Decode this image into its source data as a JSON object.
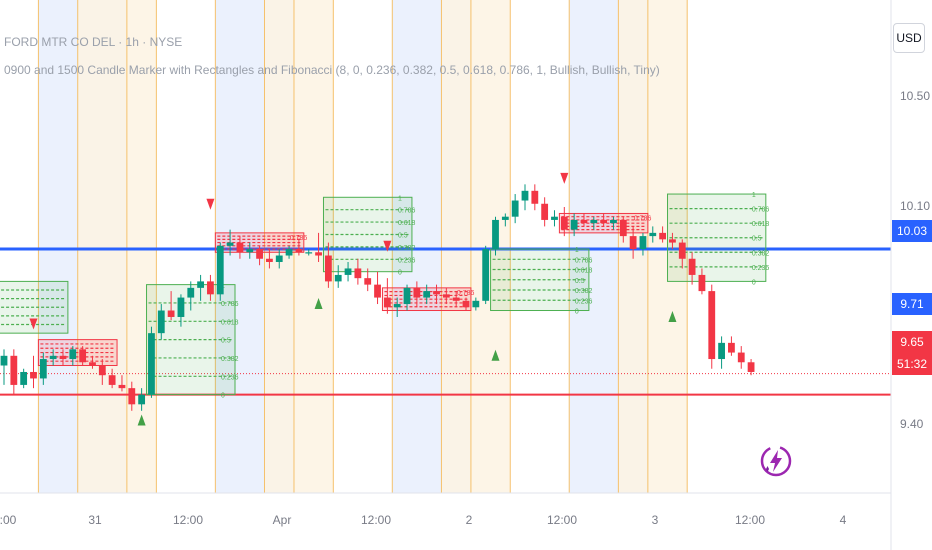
{
  "header": {
    "symbol": "FORD MTR CO DEL · 1h · NYSE",
    "indicator": "0900 and 1500 Candle Marker with Rectangles and Fibonacci (8, 0, 0.236, 0.382, 0.5, 0.618, 0.786, 1, Bullish, Bullish, Tiny)"
  },
  "price_axis": {
    "currency": "USD",
    "tick_labels": [
      "10.50",
      "10.10",
      "9.40"
    ],
    "badges": {
      "blue_line": "10.03",
      "blue": "9.71",
      "last": "9.65",
      "countdown": "51:32"
    }
  },
  "time_axis": {
    "labels": [
      ":00",
      "31",
      "12:00",
      "Apr",
      "12:00",
      "2",
      "12:00",
      "3",
      "12:00",
      "4"
    ]
  },
  "colors": {
    "up": "#089981",
    "down": "#f23645",
    "blue_line": "#2962ff",
    "session_blue": "#e8effd",
    "session_orange": "#fdf3e3",
    "fib_green": "#4caf50",
    "box_red": "#f23645"
  },
  "chart_data": {
    "type": "candlestick",
    "title": "FORD MTR CO DEL · 1h · NYSE",
    "ylim": [
      9.31,
      10.66
    ],
    "horizontal_lines": [
      {
        "price": 10.03,
        "color": "#2962ff"
      },
      {
        "price": 9.58,
        "color": "#f23645"
      },
      {
        "price": 9.645,
        "color": "#f23645",
        "style": "dotted"
      }
    ],
    "candles": [
      {
        "o": 9.67,
        "h": 9.72,
        "l": 9.61,
        "c": 9.7
      },
      {
        "o": 9.7,
        "h": 9.72,
        "l": 9.58,
        "c": 9.61
      },
      {
        "o": 9.61,
        "h": 9.66,
        "l": 9.6,
        "c": 9.65
      },
      {
        "o": 9.65,
        "h": 9.7,
        "l": 9.6,
        "c": 9.63
      },
      {
        "o": 9.63,
        "h": 9.71,
        "l": 9.61,
        "c": 9.69
      },
      {
        "o": 9.69,
        "h": 9.72,
        "l": 9.67,
        "c": 9.7
      },
      {
        "o": 9.7,
        "h": 9.72,
        "l": 9.67,
        "c": 9.69
      },
      {
        "o": 9.69,
        "h": 9.73,
        "l": 9.67,
        "c": 9.72
      },
      {
        "o": 9.72,
        "h": 9.73,
        "l": 9.67,
        "c": 9.68
      },
      {
        "o": 9.68,
        "h": 9.7,
        "l": 9.66,
        "c": 9.67
      },
      {
        "o": 9.67,
        "h": 9.69,
        "l": 9.61,
        "c": 9.64
      },
      {
        "o": 9.64,
        "h": 9.66,
        "l": 9.6,
        "c": 9.61
      },
      {
        "o": 9.61,
        "h": 9.64,
        "l": 9.59,
        "c": 9.6
      },
      {
        "o": 9.6,
        "h": 9.62,
        "l": 9.53,
        "c": 9.55
      },
      {
        "o": 9.55,
        "h": 9.6,
        "l": 9.53,
        "c": 9.58
      },
      {
        "o": 9.58,
        "h": 9.79,
        "l": 9.57,
        "c": 9.77
      },
      {
        "o": 9.77,
        "h": 9.86,
        "l": 9.75,
        "c": 9.84
      },
      {
        "o": 9.84,
        "h": 9.9,
        "l": 9.81,
        "c": 9.82
      },
      {
        "o": 9.82,
        "h": 9.89,
        "l": 9.79,
        "c": 9.88
      },
      {
        "o": 9.88,
        "h": 9.93,
        "l": 9.84,
        "c": 9.91
      },
      {
        "o": 9.91,
        "h": 9.95,
        "l": 9.87,
        "c": 9.93
      },
      {
        "o": 9.93,
        "h": 9.95,
        "l": 9.87,
        "c": 9.89
      },
      {
        "o": 9.89,
        "h": 10.05,
        "l": 9.87,
        "c": 10.04
      },
      {
        "o": 10.04,
        "h": 10.09,
        "l": 10.01,
        "c": 10.05
      },
      {
        "o": 10.05,
        "h": 10.07,
        "l": 10.0,
        "c": 10.02
      },
      {
        "o": 10.02,
        "h": 10.05,
        "l": 10.0,
        "c": 10.03
      },
      {
        "o": 10.03,
        "h": 10.04,
        "l": 9.98,
        "c": 10.0
      },
      {
        "o": 10.0,
        "h": 10.03,
        "l": 9.97,
        "c": 9.99
      },
      {
        "o": 9.99,
        "h": 10.03,
        "l": 9.97,
        "c": 10.01
      },
      {
        "o": 10.01,
        "h": 10.04,
        "l": 10.0,
        "c": 10.03
      },
      {
        "o": 10.03,
        "h": 10.06,
        "l": 10.01,
        "c": 10.02
      },
      {
        "o": 10.02,
        "h": 10.03,
        "l": 10.01,
        "c": 10.02
      },
      {
        "o": 10.02,
        "h": 10.08,
        "l": 9.99,
        "c": 10.01
      },
      {
        "o": 10.01,
        "h": 10.05,
        "l": 9.91,
        "c": 9.93
      },
      {
        "o": 9.93,
        "h": 9.98,
        "l": 9.91,
        "c": 9.95
      },
      {
        "o": 9.95,
        "h": 9.99,
        "l": 9.93,
        "c": 9.97
      },
      {
        "o": 9.97,
        "h": 10.0,
        "l": 9.92,
        "c": 9.94
      },
      {
        "o": 9.94,
        "h": 9.97,
        "l": 9.9,
        "c": 9.92
      },
      {
        "o": 9.92,
        "h": 9.96,
        "l": 9.86,
        "c": 9.88
      },
      {
        "o": 9.88,
        "h": 9.94,
        "l": 9.83,
        "c": 9.85
      },
      {
        "o": 9.85,
        "h": 9.88,
        "l": 9.82,
        "c": 9.86
      },
      {
        "o": 9.86,
        "h": 9.92,
        "l": 9.84,
        "c": 9.91
      },
      {
        "o": 9.91,
        "h": 9.93,
        "l": 9.85,
        "c": 9.88
      },
      {
        "o": 9.88,
        "h": 9.92,
        "l": 9.86,
        "c": 9.9
      },
      {
        "o": 9.9,
        "h": 9.92,
        "l": 9.86,
        "c": 9.89
      },
      {
        "o": 9.89,
        "h": 9.91,
        "l": 9.86,
        "c": 9.88
      },
      {
        "o": 9.88,
        "h": 9.9,
        "l": 9.85,
        "c": 9.87
      },
      {
        "o": 9.87,
        "h": 9.88,
        "l": 9.84,
        "c": 9.85
      },
      {
        "o": 9.85,
        "h": 9.88,
        "l": 9.84,
        "c": 9.87
      },
      {
        "o": 9.87,
        "h": 10.04,
        "l": 9.86,
        "c": 10.03
      },
      {
        "o": 10.03,
        "h": 10.13,
        "l": 10.01,
        "c": 10.12
      },
      {
        "o": 10.12,
        "h": 10.14,
        "l": 10.1,
        "c": 10.13
      },
      {
        "o": 10.13,
        "h": 10.2,
        "l": 10.11,
        "c": 10.18
      },
      {
        "o": 10.18,
        "h": 10.23,
        "l": 10.15,
        "c": 10.21
      },
      {
        "o": 10.21,
        "h": 10.23,
        "l": 10.15,
        "c": 10.17
      },
      {
        "o": 10.17,
        "h": 10.19,
        "l": 10.1,
        "c": 10.12
      },
      {
        "o": 10.12,
        "h": 10.15,
        "l": 10.1,
        "c": 10.13
      },
      {
        "o": 10.13,
        "h": 10.16,
        "l": 10.07,
        "c": 10.09
      },
      {
        "o": 10.09,
        "h": 10.14,
        "l": 10.07,
        "c": 10.12
      },
      {
        "o": 10.12,
        "h": 10.14,
        "l": 10.1,
        "c": 10.11
      },
      {
        "o": 10.11,
        "h": 10.13,
        "l": 10.09,
        "c": 10.12
      },
      {
        "o": 10.12,
        "h": 10.14,
        "l": 10.1,
        "c": 10.11
      },
      {
        "o": 10.11,
        "h": 10.13,
        "l": 10.09,
        "c": 10.12
      },
      {
        "o": 10.12,
        "h": 10.13,
        "l": 10.05,
        "c": 10.07
      },
      {
        "o": 10.07,
        "h": 10.1,
        "l": 10.0,
        "c": 10.03
      },
      {
        "o": 10.03,
        "h": 10.08,
        "l": 10.01,
        "c": 10.07
      },
      {
        "o": 10.07,
        "h": 10.1,
        "l": 10.05,
        "c": 10.08
      },
      {
        "o": 10.08,
        "h": 10.1,
        "l": 10.05,
        "c": 10.06
      },
      {
        "o": 10.06,
        "h": 10.08,
        "l": 10.03,
        "c": 10.05
      },
      {
        "o": 10.05,
        "h": 10.06,
        "l": 9.97,
        "c": 10.0
      },
      {
        "o": 10.0,
        "h": 10.02,
        "l": 9.92,
        "c": 9.95
      },
      {
        "o": 9.95,
        "h": 9.97,
        "l": 9.89,
        "c": 9.9
      },
      {
        "o": 9.9,
        "h": 9.92,
        "l": 9.66,
        "c": 9.69
      },
      {
        "o": 9.69,
        "h": 9.76,
        "l": 9.66,
        "c": 9.74
      },
      {
        "o": 9.74,
        "h": 9.76,
        "l": 9.7,
        "c": 9.71
      },
      {
        "o": 9.71,
        "h": 9.73,
        "l": 9.66,
        "c": 9.68
      },
      {
        "o": 9.68,
        "h": 9.69,
        "l": 9.64,
        "c": 9.65
      }
    ],
    "fib_boxes": [
      {
        "start": 0,
        "end": 6,
        "top": 9.93,
        "bottom": 9.77,
        "color": "green",
        "levels": []
      },
      {
        "start": 15,
        "end": 23,
        "top": 9.92,
        "bottom": 9.58,
        "color": "green",
        "levels": [
          "1",
          "0.786",
          "0.618",
          "0.5",
          "0.382",
          "0.236",
          "0"
        ]
      },
      {
        "start": 33,
        "end": 41,
        "top": 10.19,
        "bottom": 9.96,
        "color": "green",
        "levels": [
          "1",
          "0.786",
          "0.618",
          "0.5",
          "0.382",
          "0.236",
          "0"
        ]
      },
      {
        "start": 50,
        "end": 59,
        "top": 10.03,
        "bottom": 9.84,
        "color": "green",
        "levels": [
          "1",
          "0.786",
          "0.618",
          "0.5",
          "0.382",
          "0.236",
          "0"
        ]
      },
      {
        "start": 68,
        "end": 77,
        "top": 10.2,
        "bottom": 9.93,
        "color": "green",
        "levels": [
          "1",
          "0.786",
          "0.618",
          "0.5",
          "0.382",
          "0.236",
          "0"
        ]
      },
      {
        "start": 4,
        "end": 11,
        "top": 9.75,
        "bottom": 9.67,
        "color": "red",
        "levels": []
      },
      {
        "start": 22,
        "end": 30,
        "top": 10.08,
        "bottom": 10.02,
        "color": "red",
        "levels": [
          "0.786"
        ]
      },
      {
        "start": 39,
        "end": 47,
        "top": 9.91,
        "bottom": 9.84,
        "color": "red",
        "levels": [
          "0.786"
        ]
      },
      {
        "start": 57,
        "end": 65,
        "top": 10.14,
        "bottom": 10.08,
        "color": "red",
        "levels": [
          "0.786"
        ]
      }
    ],
    "markers": [
      {
        "candle": 3,
        "type": "down",
        "price": 9.8
      },
      {
        "candle": 14,
        "type": "up",
        "price": 9.5
      },
      {
        "candle": 21,
        "type": "down",
        "price": 10.17
      },
      {
        "candle": 32,
        "type": "up",
        "price": 9.86
      },
      {
        "candle": 39,
        "type": "down",
        "price": 10.04
      },
      {
        "candle": 50,
        "type": "up",
        "price": 9.7
      },
      {
        "candle": 57,
        "type": "down",
        "price": 10.25
      },
      {
        "candle": 68,
        "type": "up",
        "price": 9.82
      }
    ],
    "sessions": [
      {
        "start": 4,
        "end": 12,
        "color": "blue"
      },
      {
        "start": 8,
        "end": 15,
        "color": "orange"
      },
      {
        "start": 22,
        "end": 29,
        "color": "blue"
      },
      {
        "start": 27,
        "end": 33,
        "color": "orange"
      },
      {
        "start": 40,
        "end": 47,
        "color": "blue"
      },
      {
        "start": 45,
        "end": 51,
        "color": "orange"
      },
      {
        "start": 58,
        "end": 65,
        "color": "blue"
      },
      {
        "start": 63,
        "end": 69,
        "color": "orange"
      }
    ],
    "xlabel": "",
    "ylabel": ""
  }
}
